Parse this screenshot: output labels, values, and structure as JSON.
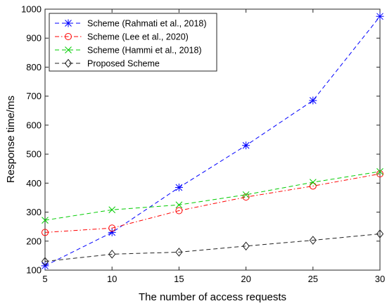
{
  "chart_data": {
    "type": "line",
    "xlabel": "The number of access requests",
    "ylabel": "Response time/ms",
    "x": [
      5,
      10,
      15,
      20,
      25,
      30
    ],
    "xlim": [
      5,
      30
    ],
    "ylim": [
      100,
      1000
    ],
    "xticks": [
      "5",
      "10",
      "15",
      "20",
      "25",
      "30"
    ],
    "yticks": [
      "100",
      "200",
      "300",
      "400",
      "500",
      "600",
      "700",
      "800",
      "900",
      "1000"
    ],
    "grid": false,
    "legend_position": "top-left",
    "series": [
      {
        "name": "Scheme (Rahmati et al., 2018)",
        "values": [
          115,
          230,
          385,
          530,
          685,
          975
        ],
        "color": "#0000ff",
        "marker": "asterisk",
        "line": "dashed"
      },
      {
        "name": "Scheme (Lee et al., 2020)",
        "values": [
          230,
          245,
          305,
          352,
          390,
          432
        ],
        "color": "#ff0000",
        "marker": "circle",
        "line": "dashdot"
      },
      {
        "name": "Scheme (Hammi et al., 2018)",
        "values": [
          272,
          308,
          325,
          360,
          403,
          440
        ],
        "color": "#00cc00",
        "marker": "cross",
        "line": "dashed"
      },
      {
        "name": "Proposed Scheme",
        "values": [
          130,
          155,
          162,
          183,
          203,
          225
        ],
        "color": "#222222",
        "marker": "diamond",
        "line": "dashed"
      }
    ]
  }
}
